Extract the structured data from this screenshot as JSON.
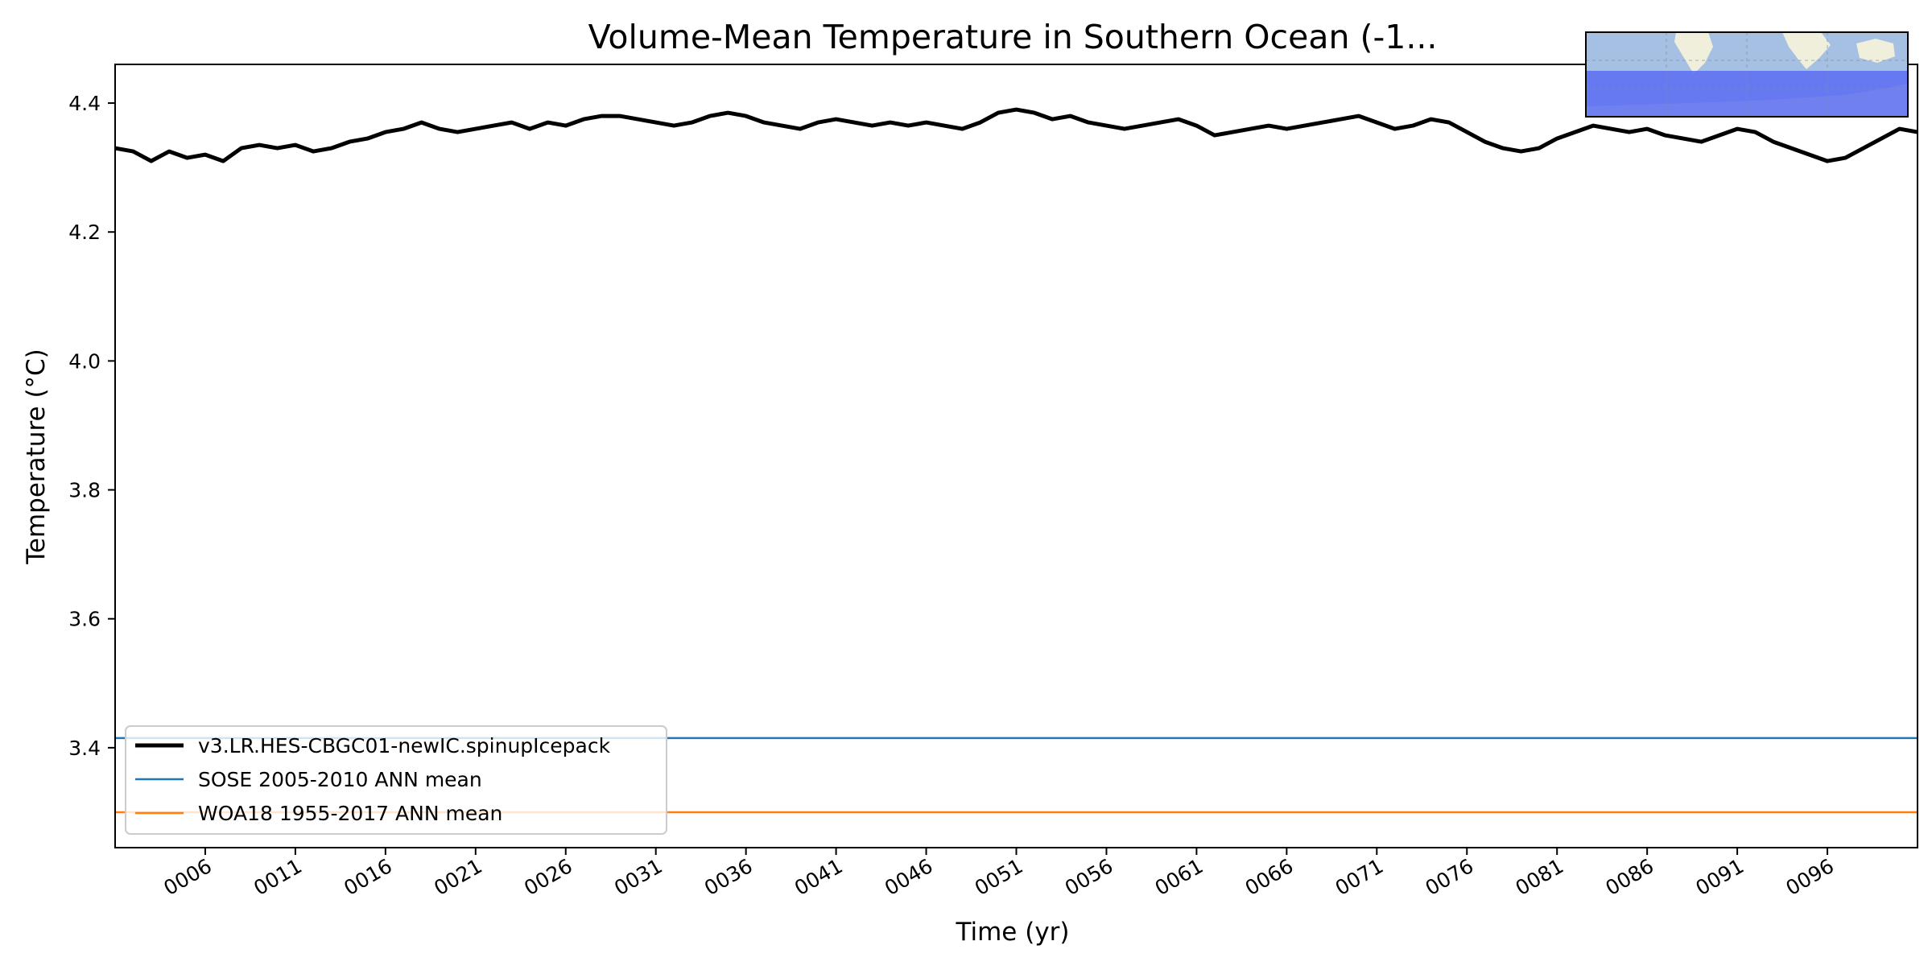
{
  "chart_data": {
    "type": "line",
    "title": "Volume-Mean Temperature in Southern Ocean (-1...",
    "xlabel": "Time (yr)",
    "ylabel": "Temperature (°C)",
    "xlim": [
      1,
      101
    ],
    "ylim": [
      3.245,
      4.46
    ],
    "yticks": [
      3.4,
      3.6,
      3.8,
      4.0,
      4.2,
      4.4
    ],
    "ytick_labels": [
      "3.4",
      "3.6",
      "3.8",
      "4.0",
      "4.2",
      "4.4"
    ],
    "xticks": [
      6,
      11,
      16,
      21,
      26,
      31,
      36,
      41,
      46,
      51,
      56,
      61,
      66,
      71,
      76,
      81,
      86,
      91,
      96
    ],
    "xtick_labels": [
      "0006",
      "0011",
      "0016",
      "0021",
      "0026",
      "0031",
      "0036",
      "0041",
      "0046",
      "0051",
      "0056",
      "0061",
      "0066",
      "0071",
      "0076",
      "0081",
      "0086",
      "0091",
      "0096"
    ],
    "grid": false,
    "legend_position": "lower-left",
    "series": [
      {
        "name": "v3.LR.HES-CBGC01-newIC.spinupIcepack",
        "color": "#000000",
        "style": "thick",
        "x": [
          1,
          2,
          3,
          4,
          5,
          6,
          7,
          8,
          9,
          10,
          11,
          12,
          13,
          14,
          15,
          16,
          17,
          18,
          19,
          20,
          21,
          22,
          23,
          24,
          25,
          26,
          27,
          28,
          29,
          30,
          31,
          32,
          33,
          34,
          35,
          36,
          37,
          38,
          39,
          40,
          41,
          42,
          43,
          44,
          45,
          46,
          47,
          48,
          49,
          50,
          51,
          52,
          53,
          54,
          55,
          56,
          57,
          58,
          59,
          60,
          61,
          62,
          63,
          64,
          65,
          66,
          67,
          68,
          69,
          70,
          71,
          72,
          73,
          74,
          75,
          76,
          77,
          78,
          79,
          80,
          81,
          82,
          83,
          84,
          85,
          86,
          87,
          88,
          89,
          90,
          91,
          92,
          93,
          94,
          95,
          96,
          97,
          98,
          99,
          100,
          101
        ],
        "y": [
          4.33,
          4.325,
          4.31,
          4.325,
          4.315,
          4.32,
          4.31,
          4.33,
          4.335,
          4.33,
          4.335,
          4.325,
          4.33,
          4.34,
          4.345,
          4.355,
          4.36,
          4.37,
          4.36,
          4.355,
          4.36,
          4.365,
          4.37,
          4.36,
          4.37,
          4.365,
          4.375,
          4.38,
          4.38,
          4.375,
          4.37,
          4.365,
          4.37,
          4.38,
          4.385,
          4.38,
          4.37,
          4.365,
          4.36,
          4.37,
          4.375,
          4.37,
          4.365,
          4.37,
          4.365,
          4.37,
          4.365,
          4.36,
          4.37,
          4.385,
          4.39,
          4.385,
          4.375,
          4.38,
          4.37,
          4.365,
          4.36,
          4.365,
          4.37,
          4.375,
          4.365,
          4.35,
          4.355,
          4.36,
          4.365,
          4.36,
          4.365,
          4.37,
          4.375,
          4.38,
          4.37,
          4.36,
          4.365,
          4.375,
          4.37,
          4.355,
          4.34,
          4.33,
          4.325,
          4.33,
          4.345,
          4.355,
          4.365,
          4.36,
          4.355,
          4.36,
          4.35,
          4.345,
          4.34,
          4.35,
          4.36,
          4.355,
          4.34,
          4.33,
          4.32,
          4.31,
          4.315,
          4.33,
          4.345,
          4.36,
          4.355
        ]
      },
      {
        "name": "SOSE 2005-2010 ANN mean",
        "color": "#1f77b4",
        "style": "thin",
        "x": [
          1,
          101
        ],
        "y": [
          3.415,
          3.415
        ]
      },
      {
        "name": "WOA18 1955-2017 ANN mean",
        "color": "#ff7f0e",
        "style": "thin",
        "x": [
          1,
          101
        ],
        "y": [
          3.3,
          3.3
        ]
      }
    ]
  },
  "inset_map": {
    "description_icon": "southern-ocean-region-map-icon",
    "ocean_color": "#a6c0e3",
    "land_color": "#efefdb",
    "region_color": "#5a6cf2"
  }
}
